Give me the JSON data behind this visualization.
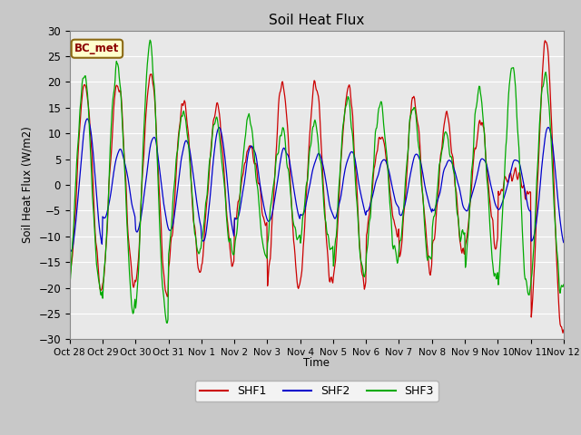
{
  "title": "Soil Heat Flux",
  "ylabel": "Soil Heat Flux (W/m2)",
  "xlabel": "Time",
  "ylim": [
    -30,
    30
  ],
  "yticks": [
    -30,
    -25,
    -20,
    -15,
    -10,
    -5,
    0,
    5,
    10,
    15,
    20,
    25,
    30
  ],
  "xtick_labels": [
    "Oct 28",
    "Oct 29",
    "Oct 30",
    "Oct 31",
    "Nov 1",
    "Nov 2",
    "Nov 3",
    "Nov 4",
    "Nov 5",
    "Nov 6",
    "Nov 7",
    "Nov 8",
    "Nov 9",
    "Nov 10",
    "Nov 11",
    "Nov 12"
  ],
  "colors": {
    "SHF1": "#cc0000",
    "SHF2": "#0000cc",
    "SHF3": "#00aa00"
  },
  "legend_label": "BC_met",
  "fig_bg": "#c8c8c8",
  "plot_bg": "#e8e8e8",
  "grid_color": "#ffffff"
}
